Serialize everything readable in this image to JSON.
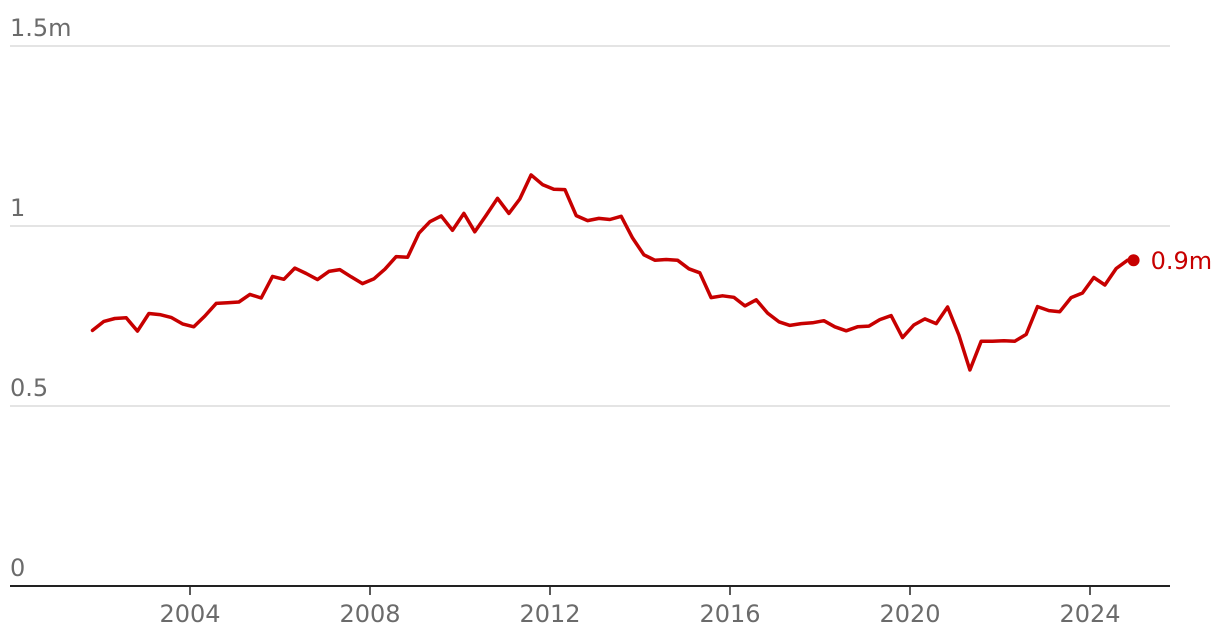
{
  "chart_data": {
    "type": "line",
    "ylim": [
      0,
      1.5
    ],
    "xlim": [
      "2000-01-01",
      "2025-12-31"
    ],
    "y_ticks": [
      {
        "value": 0,
        "label": "0"
      },
      {
        "value": 0.5,
        "label": "0.5"
      },
      {
        "value": 1,
        "label": "1"
      },
      {
        "value": 1.5,
        "label": "1.5m"
      }
    ],
    "x_ticks": [
      {
        "value": "2004-01-01",
        "label": "2004"
      },
      {
        "value": "2008-01-01",
        "label": "2008"
      },
      {
        "value": "2012-01-01",
        "label": "2012"
      },
      {
        "value": "2016-01-01",
        "label": "2016"
      },
      {
        "value": "2020-01-01",
        "label": "2020"
      },
      {
        "value": "2024-01-01",
        "label": "2024"
      }
    ],
    "grid": true,
    "colors": {
      "series": "#c70000"
    },
    "series": [
      {
        "end_label": "0.9m",
        "x": [
          "2001-11",
          "2002-02",
          "2002-05",
          "2002-08",
          "2002-11",
          "2003-02",
          "2003-05",
          "2003-08",
          "2003-11",
          "2004-02",
          "2004-05",
          "2004-08",
          "2004-11",
          "2005-02",
          "2005-05",
          "2005-08",
          "2005-11",
          "2006-02",
          "2006-05",
          "2006-08",
          "2006-11",
          "2007-02",
          "2007-05",
          "2007-08",
          "2007-11",
          "2008-02",
          "2008-05",
          "2008-08",
          "2008-11",
          "2009-02",
          "2009-05",
          "2009-08",
          "2009-11",
          "2010-02",
          "2010-05",
          "2010-08",
          "2010-11",
          "2011-02",
          "2011-05",
          "2011-08",
          "2011-11",
          "2012-02",
          "2012-05",
          "2012-08",
          "2012-11",
          "2013-02",
          "2013-05",
          "2013-08",
          "2013-11",
          "2014-02",
          "2014-05",
          "2014-08",
          "2014-11",
          "2015-02",
          "2015-05",
          "2015-08",
          "2015-11",
          "2016-02",
          "2016-05",
          "2016-08",
          "2016-11",
          "2017-02",
          "2017-05",
          "2017-08",
          "2017-11",
          "2018-02",
          "2018-05",
          "2018-08",
          "2018-11",
          "2019-02",
          "2019-05",
          "2019-08",
          "2019-11",
          "2020-02",
          "2020-05",
          "2020-08",
          "2020-11",
          "2021-02",
          "2021-05",
          "2021-08",
          "2021-11",
          "2022-02",
          "2022-05",
          "2022-08",
          "2022-11",
          "2023-02",
          "2023-05",
          "2023-08",
          "2023-11",
          "2024-02",
          "2024-05",
          "2024-08",
          "2024-11"
        ],
        "values": [
          0.71,
          0.735,
          0.743,
          0.745,
          0.708,
          0.757,
          0.754,
          0.746,
          0.728,
          0.72,
          0.75,
          0.785,
          0.787,
          0.789,
          0.81,
          0.8,
          0.86,
          0.852,
          0.883,
          0.868,
          0.851,
          0.874,
          0.879,
          0.859,
          0.84,
          0.853,
          0.88,
          0.915,
          0.913,
          0.98,
          1.012,
          1.028,
          0.988,
          1.035,
          0.984,
          1.03,
          1.077,
          1.035,
          1.075,
          1.142,
          1.115,
          1.102,
          1.101,
          1.029,
          1.015,
          1.021,
          1.018,
          1.027,
          0.967,
          0.92,
          0.905,
          0.907,
          0.905,
          0.881,
          0.87,
          0.801,
          0.806,
          0.802,
          0.778,
          0.795,
          0.758,
          0.734,
          0.724,
          0.729,
          0.731,
          0.737,
          0.72,
          0.709,
          0.72,
          0.722,
          0.74,
          0.751,
          0.69,
          0.725,
          0.742,
          0.729,
          0.775,
          0.697,
          0.6,
          0.68,
          0.68,
          0.681,
          0.68,
          0.699,
          0.776,
          0.765,
          0.762,
          0.801,
          0.814,
          0.857,
          0.836,
          0.882,
          0.905
        ]
      }
    ]
  }
}
